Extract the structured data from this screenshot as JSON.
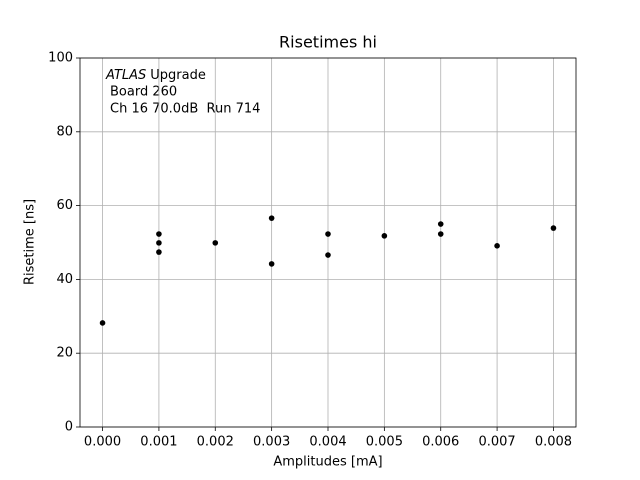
{
  "chart_data": {
    "type": "scatter",
    "title": "Risetimes hi",
    "x_label": "Amplitudes [mA]",
    "y_label": "Risetime [ns]",
    "annotation": {
      "italic": "ATLAS",
      "lines": [
        "Upgrade",
        "Board 260",
        "Ch 16 70.0dB  Run 714"
      ]
    },
    "series": [
      {
        "color": "#000000",
        "x": [
          0,
          0.001,
          0.001,
          0.001,
          0.002,
          0.003,
          0.003,
          0.004,
          0.004,
          0.005,
          0.006,
          0.006,
          0.007,
          0.008
        ],
        "values": [
          28.2,
          52.3,
          49.9,
          47.4,
          49.9,
          56.6,
          44.2,
          52.3,
          46.6,
          51.8,
          55.0,
          52.3,
          49.1,
          53.9
        ]
      }
    ],
    "xlim": [
      -0.0004,
      0.0084
    ],
    "xticks": [
      {
        "value": 0,
        "label": "0.000"
      },
      {
        "value": 0.001,
        "label": "0.001"
      },
      {
        "value": 0.002,
        "label": "0.002"
      },
      {
        "value": 0.003,
        "label": "0.003"
      },
      {
        "value": 0.004,
        "label": "0.004"
      },
      {
        "value": 0.005,
        "label": "0.005"
      },
      {
        "value": 0.006,
        "label": "0.006"
      },
      {
        "value": 0.007,
        "label": "0.007"
      },
      {
        "value": 0.008,
        "label": "0.008"
      }
    ],
    "ylim": [
      0,
      100
    ],
    "yticks": [
      0,
      20,
      40,
      60,
      80,
      100
    ],
    "grid": true
  }
}
